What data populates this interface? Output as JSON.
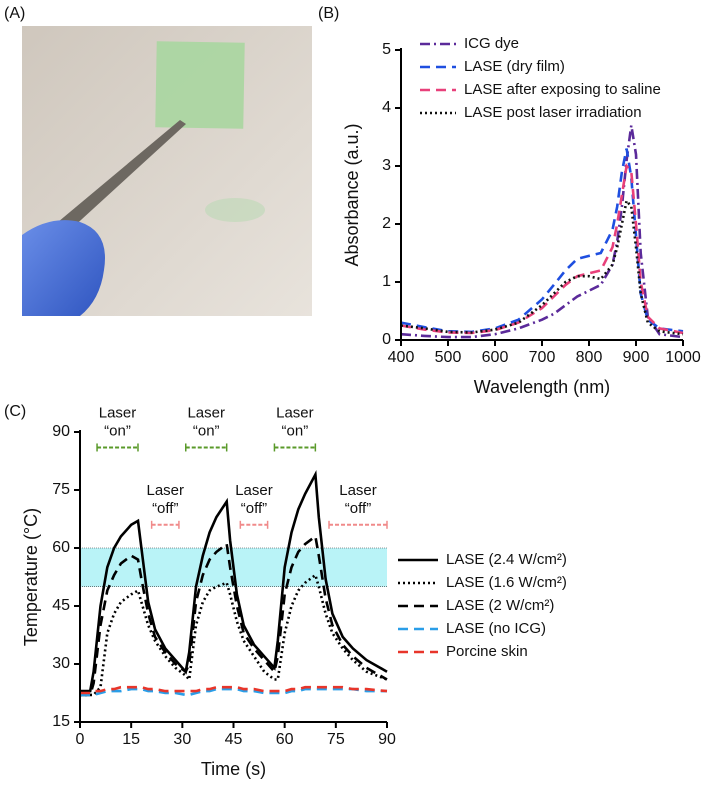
{
  "panel_labels": [
    "(A)",
    "(B)",
    "(C)"
  ],
  "chart_data": [
    {
      "type": "line",
      "xlabel": "Wavelength (nm)",
      "ylabel": "Absorbance (a.u.)",
      "x": [
        400,
        450,
        500,
        550,
        600,
        650,
        700,
        725,
        750,
        775,
        800,
        825,
        850,
        860,
        870,
        880,
        890,
        900,
        910,
        925,
        950,
        1000
      ],
      "xlim": [
        400,
        1000
      ],
      "xticks": [
        400,
        500,
        600,
        700,
        800,
        900,
        1000
      ],
      "ylim": [
        0,
        5
      ],
      "yticks": [
        0,
        1,
        2,
        3,
        4,
        5
      ],
      "legend": "upper left",
      "series": [
        {
          "name": "ICG dye",
          "color": "#5b2a9a",
          "dash": "dashdot",
          "values": [
            0.1,
            0.07,
            0.05,
            0.05,
            0.1,
            0.2,
            0.35,
            0.45,
            0.6,
            0.75,
            0.85,
            0.95,
            1.3,
            1.7,
            2.3,
            3.1,
            3.7,
            3.2,
            1.5,
            0.4,
            0.1,
            0.05
          ]
        },
        {
          "name": "LASE (dry film)",
          "color": "#1f4fe0",
          "dash": "dash",
          "values": [
            0.3,
            0.22,
            0.15,
            0.14,
            0.2,
            0.35,
            0.7,
            0.95,
            1.2,
            1.4,
            1.45,
            1.5,
            1.9,
            2.3,
            2.9,
            3.3,
            2.8,
            1.8,
            0.8,
            0.35,
            0.2,
            0.15
          ]
        },
        {
          "name": "LASE after exposing to saline",
          "color": "#e8407a",
          "dash": "dash",
          "values": [
            0.25,
            0.18,
            0.13,
            0.12,
            0.17,
            0.3,
            0.55,
            0.75,
            0.95,
            1.1,
            1.15,
            1.2,
            1.6,
            2.0,
            2.5,
            3.0,
            2.9,
            2.0,
            1.0,
            0.4,
            0.2,
            0.12
          ]
        },
        {
          "name": "LASE post laser irradiation",
          "color": "#111111",
          "dash": "dot",
          "values": [
            0.25,
            0.2,
            0.14,
            0.13,
            0.18,
            0.3,
            0.6,
            0.8,
            1.0,
            1.1,
            1.1,
            1.05,
            1.3,
            1.6,
            2.0,
            2.4,
            2.3,
            1.6,
            0.8,
            0.3,
            0.15,
            0.1
          ]
        }
      ]
    },
    {
      "type": "line",
      "xlabel": "Time (s)",
      "ylabel": "Temperature (°C)",
      "x": [
        0,
        3,
        4,
        6,
        8,
        10,
        12,
        15,
        17,
        18,
        20,
        22,
        25,
        28,
        31,
        32,
        34,
        36,
        38,
        40,
        43,
        44,
        46,
        48,
        51,
        54,
        57,
        58,
        60,
        62,
        64,
        66,
        69,
        70,
        72,
        74,
        77,
        80,
        84,
        90
      ],
      "xlim": [
        0,
        90
      ],
      "xticks": [
        0,
        15,
        30,
        45,
        60,
        75,
        90
      ],
      "ylim": [
        15,
        90
      ],
      "yticks": [
        15,
        30,
        45,
        60,
        75,
        90
      ],
      "legend": "right",
      "band": [
        50,
        60
      ],
      "band_color": "#b9f3f7",
      "annotations": [
        {
          "lines": [
            "Laser",
            "“on”"
          ],
          "range": [
            5,
            17
          ],
          "y": 86,
          "color": "#5a9a2a"
        },
        {
          "lines": [
            "Laser",
            "“on”"
          ],
          "range": [
            31,
            43
          ],
          "y": 86,
          "color": "#5a9a2a"
        },
        {
          "lines": [
            "Laser",
            "“on”"
          ],
          "range": [
            57,
            69
          ],
          "y": 86,
          "color": "#5a9a2a"
        },
        {
          "lines": [
            "Laser",
            "“off”"
          ],
          "range": [
            21,
            29
          ],
          "y": 66,
          "color": "#f08a8a"
        },
        {
          "lines": [
            "Laser",
            "“off”"
          ],
          "range": [
            47,
            55
          ],
          "y": 66,
          "color": "#f08a8a"
        },
        {
          "lines": [
            "Laser",
            "“off”"
          ],
          "range": [
            73,
            90
          ],
          "y": 66,
          "color": "#f08a8a"
        }
      ],
      "series": [
        {
          "name": "LASE (2.4 W/cm²)",
          "color": "#000000",
          "dash": "solid",
          "values": [
            23,
            23,
            28,
            45,
            55,
            60,
            63,
            66,
            67,
            60,
            46,
            39,
            34,
            31,
            28,
            33,
            50,
            58,
            64,
            68,
            72,
            62,
            48,
            40,
            35,
            32,
            29,
            36,
            55,
            64,
            70,
            74,
            79,
            68,
            52,
            43,
            37,
            34,
            31,
            28
          ]
        },
        {
          "name": "LASE (1.6 W/cm²)",
          "color": "#000000",
          "dash": "dot",
          "values": [
            22,
            22,
            22,
            24,
            38,
            43,
            46,
            48,
            49,
            46,
            40,
            36,
            32,
            29,
            27,
            26,
            40,
            46,
            49,
            50,
            51,
            48,
            41,
            36,
            32,
            28,
            26,
            26,
            38,
            45,
            49,
            51,
            53,
            50,
            43,
            38,
            34,
            31,
            28,
            26
          ]
        },
        {
          "name": "LASE (2 W/cm²)",
          "color": "#000000",
          "dash": "dash",
          "values": [
            22,
            22,
            25,
            40,
            49,
            53,
            56,
            58,
            57,
            52,
            43,
            37,
            33,
            30,
            28,
            30,
            46,
            53,
            57,
            59,
            61,
            55,
            45,
            38,
            34,
            31,
            28,
            32,
            48,
            55,
            59,
            61,
            63,
            58,
            47,
            40,
            35,
            32,
            29,
            26
          ]
        },
        {
          "name": "LASE (no ICG)",
          "color": "#2a9ee8",
          "dash": "dash",
          "values": [
            22,
            22,
            22,
            22.5,
            23,
            23,
            23,
            23.5,
            23.5,
            23.5,
            23,
            23,
            22.5,
            22.5,
            22,
            22,
            22.5,
            23,
            23,
            23.5,
            23.5,
            23.5,
            23.5,
            23,
            23,
            22.5,
            22.5,
            22.5,
            22.5,
            23,
            23,
            23.5,
            23.5,
            23.5,
            23.5,
            23.5,
            23.5,
            23.5,
            23,
            23
          ]
        },
        {
          "name": "Porcine skin",
          "color": "#e8352a",
          "dash": "dash",
          "values": [
            22.5,
            22.5,
            23,
            23,
            23.5,
            23.5,
            24,
            24,
            24,
            24,
            23.5,
            23.5,
            23,
            23,
            23,
            23,
            23,
            23.5,
            23.5,
            24,
            24,
            24,
            24,
            23.5,
            23.5,
            23,
            23,
            23,
            23,
            23.5,
            23.5,
            24,
            24,
            24,
            24,
            24,
            24,
            23.5,
            23.5,
            23
          ]
        }
      ]
    }
  ]
}
